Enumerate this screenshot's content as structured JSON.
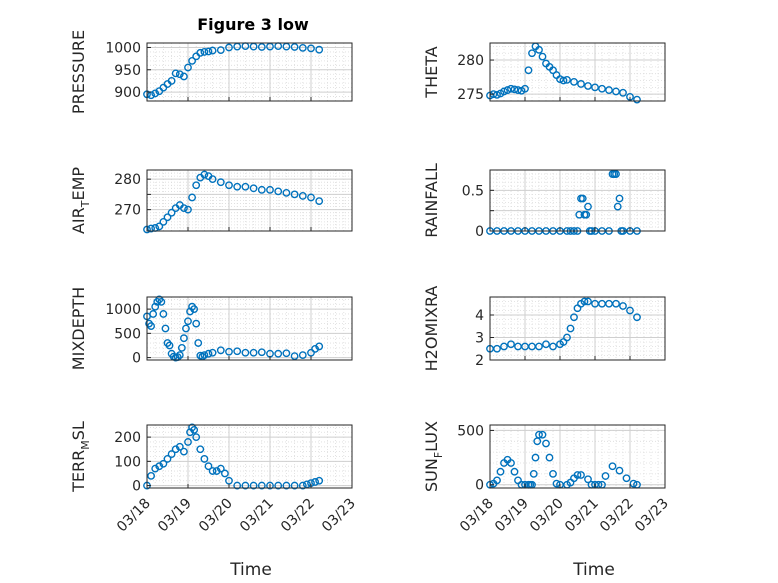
{
  "figure_title": "Figure 3 low",
  "x_axis_label": "Time",
  "x_tick_labels": [
    "03/18",
    "03/19",
    "03/20",
    "03/21",
    "03/22",
    "03/23"
  ],
  "marker_color": "#0072BD",
  "chart_data": [
    {
      "type": "scatter",
      "name": "PRESSURE",
      "ylabel": "PRESSURE",
      "ylim": [
        880,
        1010
      ],
      "yticks": [
        900,
        950,
        1000
      ],
      "yticklabels": [
        "900",
        "950",
        "1000"
      ],
      "xlim": [
        "03/18",
        "03/23"
      ],
      "grid": "on, minor",
      "x": [
        0,
        0.1,
        0.2,
        0.3,
        0.4,
        0.5,
        0.6,
        0.7,
        0.8,
        0.9,
        1.0,
        1.1,
        1.2,
        1.3,
        1.4,
        1.5,
        1.6,
        1.8,
        2.0,
        2.2,
        2.4,
        2.6,
        2.8,
        3.0,
        3.2,
        3.4,
        3.6,
        3.8,
        4.0,
        4.2
      ],
      "y": [
        895,
        893,
        897,
        902,
        910,
        918,
        925,
        942,
        940,
        935,
        955,
        970,
        980,
        988,
        990,
        991,
        993,
        994,
        1000,
        1002,
        1003,
        1002,
        1001,
        1002,
        1003,
        1002,
        1001,
        999,
        998,
        995
      ]
    },
    {
      "type": "scatter",
      "name": "THETA",
      "ylabel": "THETA",
      "ylim": [
        274,
        282.5
      ],
      "yticks": [
        275,
        280
      ],
      "yticklabels": [
        "275",
        "280"
      ],
      "xlim": [
        "03/18",
        "03/23"
      ],
      "grid": "on, minor",
      "x": [
        0,
        0.1,
        0.2,
        0.3,
        0.4,
        0.5,
        0.6,
        0.7,
        0.8,
        0.9,
        1.0,
        1.1,
        1.2,
        1.3,
        1.4,
        1.5,
        1.6,
        1.7,
        1.8,
        1.9,
        2.0,
        2.1,
        2.2,
        2.4,
        2.6,
        2.8,
        3.0,
        3.2,
        3.4,
        3.6,
        3.8,
        4.0,
        4.2
      ],
      "y": [
        274.8,
        275.0,
        274.9,
        275.1,
        275.4,
        275.6,
        275.8,
        275.7,
        275.6,
        275.5,
        275.8,
        278.5,
        281.0,
        282.0,
        281.5,
        280.5,
        279.5,
        279.0,
        278.5,
        277.8,
        277.2,
        277.0,
        277.1,
        276.8,
        276.5,
        276.2,
        276.0,
        275.8,
        275.6,
        275.4,
        275.2,
        274.6,
        274.2
      ]
    },
    {
      "type": "scatter",
      "name": "AIR_TEMP",
      "ylabel": "AIR_TEMP",
      "ylim": [
        263,
        283
      ],
      "yticks": [
        270,
        275,
        280
      ],
      "yticklabels": [
        "270",
        "",
        "280"
      ],
      "xlim": [
        "03/18",
        "03/23"
      ],
      "grid": "on, minor",
      "x": [
        0,
        0.1,
        0.2,
        0.3,
        0.4,
        0.5,
        0.6,
        0.7,
        0.8,
        0.9,
        1.0,
        1.1,
        1.2,
        1.3,
        1.4,
        1.5,
        1.6,
        1.8,
        2.0,
        2.2,
        2.4,
        2.6,
        2.8,
        3.0,
        3.2,
        3.4,
        3.6,
        3.8,
        4.0,
        4.2
      ],
      "y": [
        263.5,
        263.8,
        264.0,
        264.5,
        266.0,
        267.5,
        269.0,
        270.5,
        271.5,
        270.5,
        270.0,
        274.0,
        278.0,
        280.5,
        281.5,
        281.0,
        280.0,
        279.0,
        278.0,
        277.5,
        277.5,
        277.0,
        276.5,
        276.5,
        276.0,
        275.5,
        275.0,
        274.5,
        274.0,
        272.8
      ]
    },
    {
      "type": "scatter",
      "name": "RAINFALL",
      "ylabel": "RAINFALL",
      "ylim": [
        0,
        0.75
      ],
      "yticks": [
        0,
        0.25,
        0.5
      ],
      "yticklabels": [
        "0",
        "",
        "0.5"
      ],
      "xlim": [
        "03/18",
        "03/23"
      ],
      "grid": "on, minor",
      "x": [
        0,
        0.2,
        0.4,
        0.6,
        0.8,
        1.0,
        1.2,
        1.4,
        1.6,
        1.8,
        2.0,
        2.2,
        2.3,
        2.4,
        2.5,
        2.55,
        2.6,
        2.65,
        2.7,
        2.75,
        2.8,
        2.85,
        2.9,
        3.0,
        3.2,
        3.4,
        3.5,
        3.55,
        3.6,
        3.65,
        3.7,
        3.75,
        3.8,
        4.0,
        4.2
      ],
      "y": [
        0,
        0,
        0,
        0,
        0,
        0,
        0,
        0,
        0,
        0,
        0,
        0,
        0,
        0,
        0,
        0.2,
        0.4,
        0.4,
        0.2,
        0.2,
        0.3,
        0,
        0,
        0,
        0,
        0,
        0.7,
        0.7,
        0.7,
        0.3,
        0.4,
        0,
        0,
        0,
        0
      ]
    },
    {
      "type": "scatter",
      "name": "MIXDEPTH",
      "ylabel": "MIXDEPTH",
      "ylim": [
        -50,
        1250
      ],
      "yticks": [
        0,
        500,
        1000
      ],
      "yticklabels": [
        "0",
        "500",
        "1000"
      ],
      "xlim": [
        "03/18",
        "03/23"
      ],
      "grid": "on, minor",
      "x": [
        0,
        0.05,
        0.1,
        0.15,
        0.2,
        0.25,
        0.3,
        0.35,
        0.4,
        0.45,
        0.5,
        0.55,
        0.6,
        0.65,
        0.7,
        0.75,
        0.8,
        0.85,
        0.9,
        0.95,
        1.0,
        1.05,
        1.1,
        1.15,
        1.2,
        1.25,
        1.3,
        1.35,
        1.4,
        1.5,
        1.6,
        1.8,
        2.0,
        2.2,
        2.4,
        2.6,
        2.8,
        3.0,
        3.2,
        3.4,
        3.6,
        3.8,
        4.0,
        4.1,
        4.2
      ],
      "y": [
        850,
        700,
        650,
        900,
        1050,
        1150,
        1200,
        1150,
        900,
        600,
        300,
        250,
        80,
        20,
        0,
        10,
        50,
        200,
        400,
        600,
        750,
        950,
        1050,
        1000,
        700,
        300,
        40,
        20,
        50,
        80,
        100,
        150,
        120,
        130,
        100,
        100,
        110,
        80,
        80,
        90,
        30,
        50,
        100,
        180,
        230
      ]
    },
    {
      "type": "scatter",
      "name": "H2OMIXRA",
      "ylabel": "H2OMIXRA",
      "ylim": [
        2,
        4.8
      ],
      "yticks": [
        2,
        3,
        4
      ],
      "yticklabels": [
        "2",
        "3",
        "4"
      ],
      "xlim": [
        "03/18",
        "03/23"
      ],
      "grid": "on, minor",
      "x": [
        0,
        0.2,
        0.4,
        0.6,
        0.8,
        1.0,
        1.2,
        1.4,
        1.6,
        1.8,
        2.0,
        2.1,
        2.2,
        2.3,
        2.4,
        2.5,
        2.6,
        2.7,
        2.8,
        3.0,
        3.2,
        3.4,
        3.6,
        3.8,
        4.0,
        4.2
      ],
      "y": [
        2.5,
        2.5,
        2.6,
        2.7,
        2.6,
        2.6,
        2.6,
        2.6,
        2.7,
        2.6,
        2.7,
        2.8,
        3.0,
        3.4,
        3.9,
        4.3,
        4.5,
        4.6,
        4.6,
        4.5,
        4.5,
        4.5,
        4.5,
        4.4,
        4.2,
        3.9
      ]
    },
    {
      "type": "scatter",
      "name": "TERR_MSL",
      "ylabel": "TERR_MSL",
      "ylim": [
        -10,
        250
      ],
      "yticks": [
        0,
        100,
        200
      ],
      "yticklabels": [
        "0",
        "100",
        "200"
      ],
      "xlim": [
        "03/18",
        "03/23"
      ],
      "grid": "on, minor",
      "x": [
        0,
        0.1,
        0.2,
        0.3,
        0.4,
        0.5,
        0.6,
        0.7,
        0.8,
        0.9,
        1.0,
        1.05,
        1.1,
        1.15,
        1.2,
        1.3,
        1.4,
        1.5,
        1.6,
        1.7,
        1.8,
        1.9,
        2.0,
        2.2,
        2.4,
        2.6,
        2.8,
        3.0,
        3.2,
        3.4,
        3.6,
        3.8,
        3.9,
        4.0,
        4.1,
        4.2
      ],
      "y": [
        0,
        40,
        70,
        80,
        90,
        110,
        130,
        150,
        160,
        140,
        180,
        220,
        240,
        230,
        200,
        150,
        110,
        80,
        60,
        60,
        70,
        50,
        20,
        0,
        0,
        0,
        0,
        0,
        0,
        0,
        0,
        0,
        5,
        10,
        15,
        20
      ]
    },
    {
      "type": "scatter",
      "name": "SUN_FLUX",
      "ylabel": "SUN_FLUX",
      "ylim": [
        -30,
        550
      ],
      "yticks": [
        0,
        500
      ],
      "yticklabels": [
        "0",
        "500"
      ],
      "xlim": [
        "03/18",
        "03/23"
      ],
      "grid": "on, minor",
      "x": [
        0,
        0.1,
        0.2,
        0.3,
        0.4,
        0.5,
        0.6,
        0.7,
        0.8,
        0.9,
        1.0,
        1.1,
        1.15,
        1.2,
        1.25,
        1.3,
        1.35,
        1.4,
        1.5,
        1.6,
        1.7,
        1.8,
        1.9,
        2.0,
        2.2,
        2.3,
        2.4,
        2.5,
        2.6,
        2.8,
        2.9,
        3.0,
        3.1,
        3.2,
        3.3,
        3.5,
        3.7,
        3.9,
        4.1,
        4.2
      ],
      "y": [
        0,
        10,
        40,
        120,
        200,
        230,
        200,
        120,
        40,
        0,
        0,
        0,
        0,
        0,
        100,
        250,
        400,
        460,
        460,
        380,
        250,
        100,
        10,
        0,
        0,
        20,
        60,
        90,
        90,
        50,
        0,
        0,
        0,
        0,
        80,
        170,
        130,
        60,
        10,
        0
      ]
    }
  ]
}
